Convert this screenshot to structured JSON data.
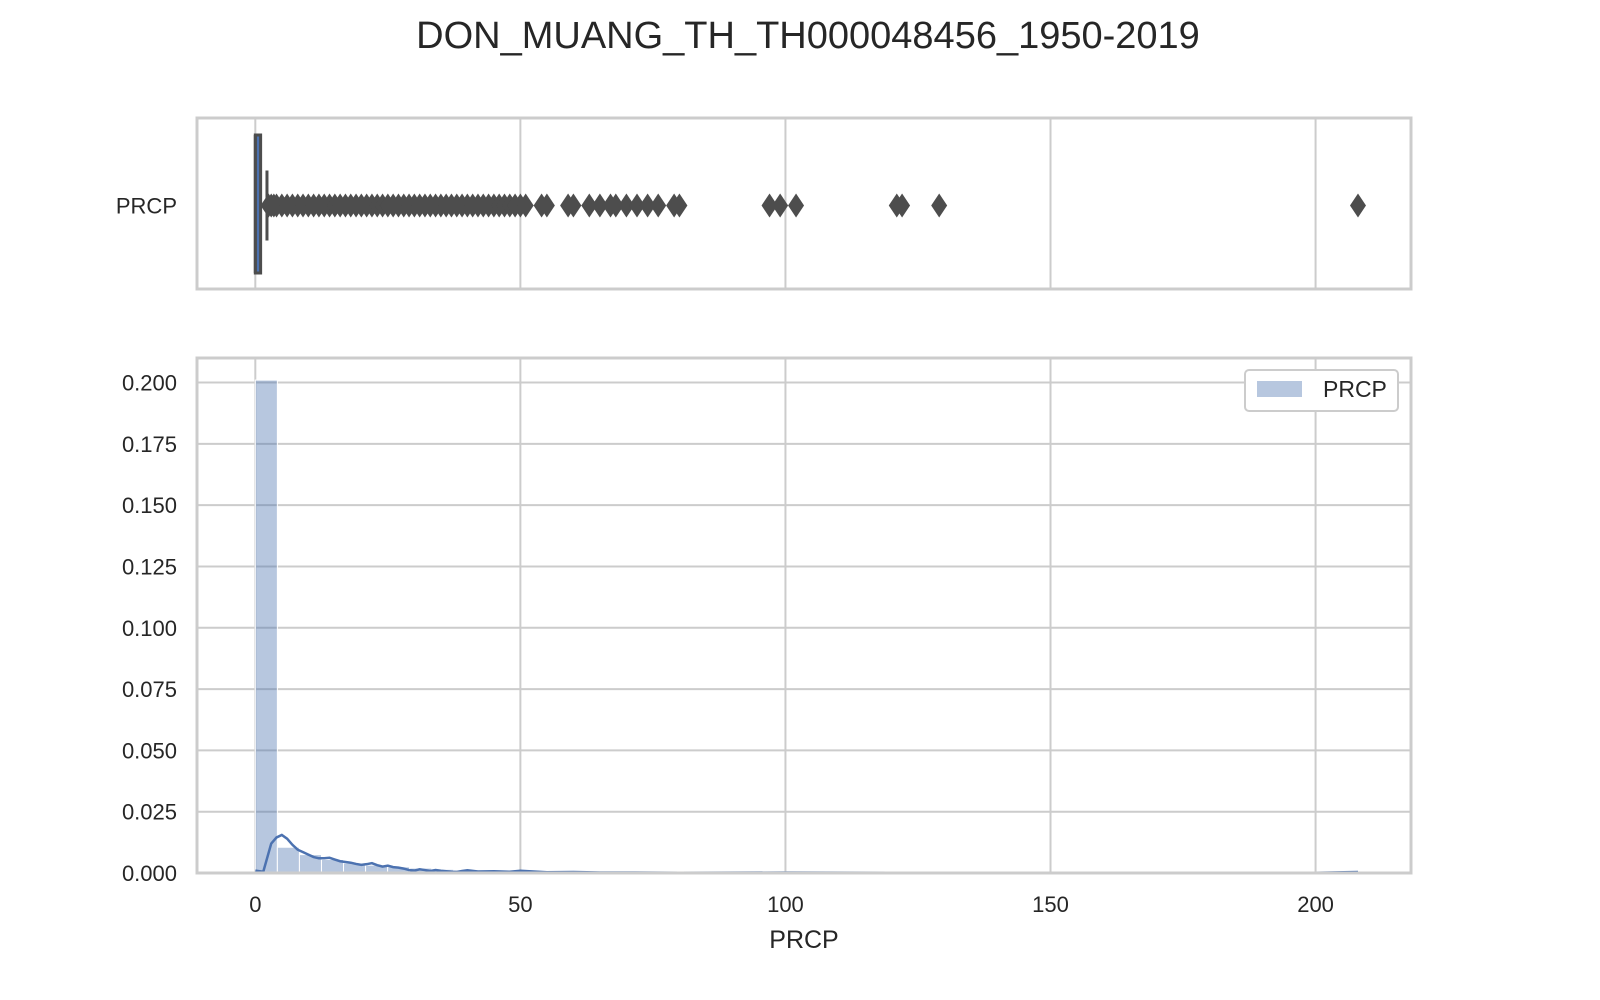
{
  "chart_data": [
    {
      "type": "box",
      "title": "DON_MUANG_TH_TH000048456_1950-2019",
      "category_label": "PRCP",
      "xlim": [
        -11,
        218
      ],
      "xticks": [
        0,
        50,
        100,
        150,
        200
      ],
      "grid": true,
      "box": {
        "q1": 0,
        "median": 0,
        "q3": 1,
        "whisker_low": 0,
        "whisker_high": 2.2
      },
      "outliers": [
        2.5,
        3,
        3.5,
        4,
        5,
        6,
        7,
        8,
        9,
        10,
        11,
        12,
        13,
        14,
        15,
        16,
        17,
        18,
        19,
        20,
        21,
        22,
        23,
        24,
        25,
        26,
        27,
        28,
        29,
        30,
        31,
        32,
        33,
        34,
        35,
        36,
        37,
        38,
        39,
        40,
        41,
        42,
        43,
        44,
        45,
        46,
        47,
        48,
        49,
        50,
        51,
        54,
        55,
        59,
        60,
        63,
        65,
        67,
        68,
        70,
        72,
        74,
        76,
        79,
        80,
        97,
        99,
        102,
        121,
        122,
        129,
        208
      ],
      "color": "#4c72b0",
      "edge_color": "#4d4d4d"
    },
    {
      "type": "histogram",
      "xlabel": "PRCP",
      "ylabel": "",
      "xlim": [
        -11,
        218
      ],
      "ylim": [
        0,
        0.21
      ],
      "xticks": [
        0,
        50,
        100,
        150,
        200
      ],
      "yticks": [
        "0.000",
        "0.025",
        "0.050",
        "0.075",
        "0.100",
        "0.125",
        "0.150",
        "0.175",
        "0.200"
      ],
      "grid": true,
      "legend": {
        "placement": "top-right",
        "entries": [
          "PRCP"
        ]
      },
      "bin_width": 4.16,
      "bins_start": 0,
      "density": [
        0.201,
        0.0105,
        0.0075,
        0.0055,
        0.004,
        0.0032,
        0.0025,
        0.002,
        0.0015,
        0.0012,
        0.0009,
        0.0007,
        0.0006,
        0.0005,
        0.0004,
        0.0003,
        0.0003,
        0.00025,
        0.0002,
        0.00015,
        0.00012,
        0.0001,
        8e-05,
        6e-05,
        5e-05,
        4e-05,
        3e-05,
        3e-05,
        2e-05,
        2e-05,
        2e-05,
        1e-05,
        1e-05,
        1e-05,
        1e-05,
        1e-05,
        1e-05,
        1e-05,
        1e-05,
        1e-05,
        1e-05,
        1e-05,
        1e-05,
        1e-05,
        1e-05,
        1e-05,
        1e-05,
        1e-05,
        1e-05,
        1e-05
      ],
      "kde": {
        "x": [
          0,
          1.5,
          3,
          4,
          5,
          6,
          7,
          8,
          9,
          10,
          11,
          12,
          13,
          14,
          15,
          16,
          17,
          18,
          19,
          20,
          21,
          22,
          23,
          24,
          25,
          26,
          27,
          28,
          29,
          30,
          31,
          32,
          33,
          34,
          35,
          36,
          37,
          38,
          39,
          40,
          42,
          45,
          48,
          50,
          55,
          60,
          65,
          70,
          80,
          100,
          120,
          150,
          200,
          208
        ],
        "y": [
          0.001,
          0.0005,
          0.012,
          0.0145,
          0.0155,
          0.014,
          0.0115,
          0.0095,
          0.0085,
          0.0075,
          0.0065,
          0.006,
          0.006,
          0.0062,
          0.0055,
          0.0048,
          0.0045,
          0.0042,
          0.0037,
          0.0033,
          0.0036,
          0.004,
          0.0032,
          0.0026,
          0.003,
          0.0024,
          0.0022,
          0.0018,
          0.0012,
          0.001,
          0.0015,
          0.0012,
          0.0008,
          0.0012,
          0.0009,
          0.0007,
          0.0005,
          0.0004,
          0.0008,
          0.0011,
          0.0006,
          0.0007,
          0.0005,
          0.0009,
          0.0003,
          0.0004,
          0.0002,
          0.0002,
          0.0001,
          0.0002,
          0.0001,
          0.0001,
          0.0001,
          0.0004
        ]
      },
      "bar_color": "#4c72b0",
      "line_color": "#4c72b0"
    }
  ]
}
